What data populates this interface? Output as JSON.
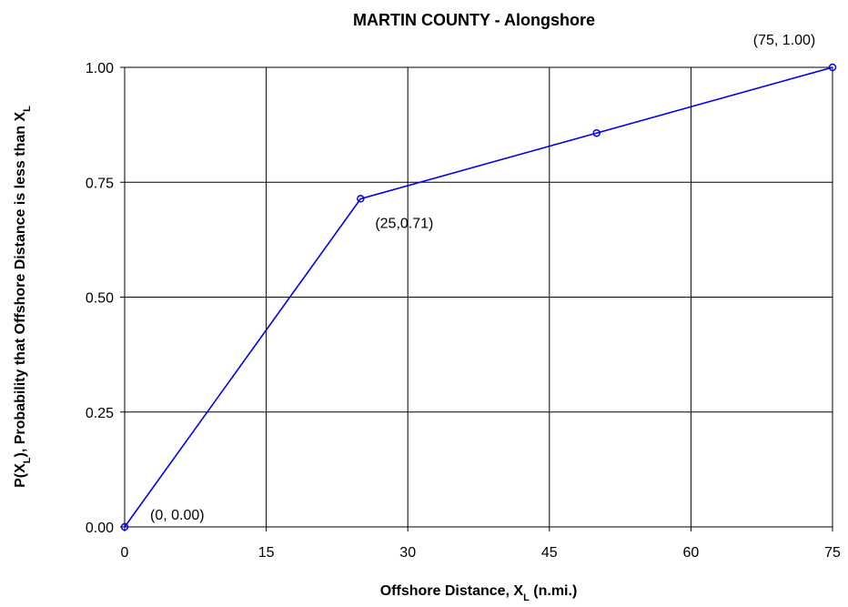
{
  "chart_data": {
    "type": "line",
    "title": "MARTIN COUNTY -  Alongshore",
    "x_label": [
      "Offshore Distance, X",
      "L",
      " (n.mi.)"
    ],
    "y_label": [
      "P(X",
      "L",
      "), Probability that Offshore Distance is less than X",
      "L"
    ],
    "x": [
      0,
      25,
      50,
      75
    ],
    "series": [
      {
        "name": "P(XL)",
        "color": "#0000ee",
        "values": [
          0.0,
          0.714,
          0.857,
          1.0
        ],
        "value_labels": [
          "(0, 0.00)",
          "(25,0.71)",
          null,
          "(75, 1.00)"
        ]
      }
    ],
    "xlim": [
      0,
      75
    ],
    "xticks": [
      0,
      15,
      30,
      45,
      60,
      75
    ],
    "ylim": [
      0,
      1
    ],
    "yticks": [
      {
        "value": 0,
        "label": "0.00"
      },
      {
        "value": 0.25,
        "label": "0.25"
      },
      {
        "value": 0.5,
        "label": "0.50"
      },
      {
        "value": 0.75,
        "label": "0.75"
      },
      {
        "value": 1,
        "label": "1.00"
      }
    ],
    "grid": true
  }
}
